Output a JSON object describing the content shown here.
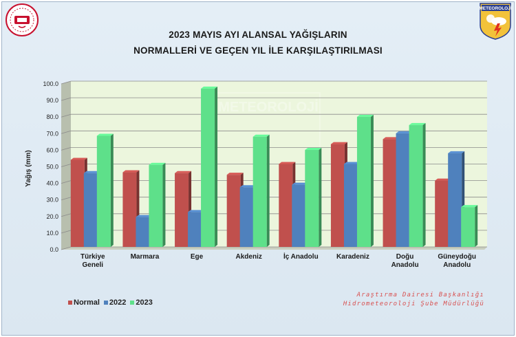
{
  "header": {
    "title_line1": "2023 MAYIS AYI ALANSAL YAĞIŞLARIN",
    "title_line2": "NORMALLERİ VE GEÇEN YIL İLE KARŞILAŞTIRILMASI",
    "right_logo_text": "METEOROLOJİ"
  },
  "footer": {
    "credit_line1": "Araştırma Dairesi Başkanlığı",
    "credit_line2": "Hidrometeoroloji Şube Müdürlüğü"
  },
  "legend": [
    {
      "name": "Normal",
      "color": "#c0504d"
    },
    {
      "name": "2022",
      "color": "#4f81bd"
    },
    {
      "name": "2023",
      "color": "#5ee08a"
    }
  ],
  "chart_data": {
    "type": "bar",
    "title": "2023 MAYIS AYI ALANSAL YAĞIŞLARIN NORMALLERİ VE GEÇEN YIL İLE KARŞILAŞTIRILMASI",
    "xlabel": "",
    "ylabel": "Yağış (mm)",
    "ylim": [
      0,
      100
    ],
    "yticks": [
      "0.0",
      "10.0",
      "20.0",
      "30.0",
      "40.0",
      "50.0",
      "60.0",
      "70.0",
      "80.0",
      "90.0",
      "100.0"
    ],
    "grid": true,
    "legend_position": "bottom-left",
    "categories": [
      [
        "Türkiye",
        "Geneli"
      ],
      [
        "Marmara"
      ],
      [
        "Ege"
      ],
      [
        "Akdeniz"
      ],
      [
        "İç Anadolu"
      ],
      [
        "Karadeniz"
      ],
      [
        "Doğu",
        "Anadolu"
      ],
      [
        "Güneydoğu",
        "Anadolu"
      ]
    ],
    "series": [
      {
        "name": "Normal",
        "color": "#c0504d",
        "values": [
          52.5,
          45.0,
          44.5,
          43.5,
          50.0,
          62.0,
          65.0,
          40.0
        ]
      },
      {
        "name": "2022",
        "color": "#4f81bd",
        "values": [
          44.5,
          18.0,
          21.0,
          36.0,
          37.5,
          50.0,
          68.5,
          56.5
        ]
      },
      {
        "name": "2023",
        "color": "#5ee08a",
        "values": [
          67.0,
          49.5,
          95.5,
          66.5,
          58.5,
          78.5,
          73.5,
          24.0
        ]
      }
    ]
  }
}
